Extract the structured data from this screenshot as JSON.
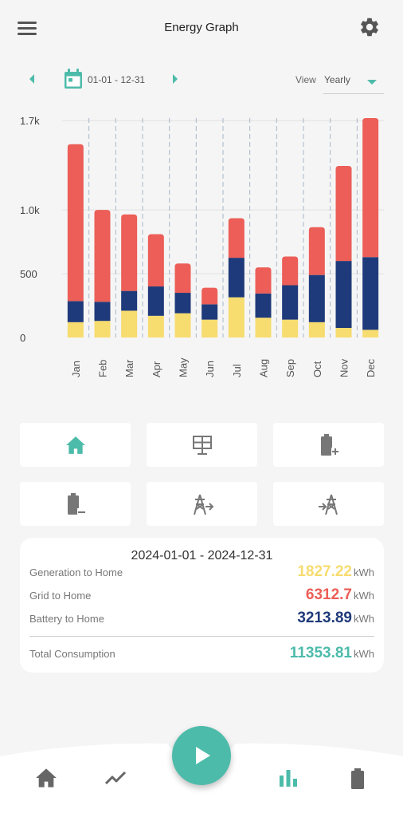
{
  "header": {
    "title": "Energy Graph",
    "menu_icon": "hamburger-menu-icon",
    "settings_icon": "gear-icon"
  },
  "date_bar": {
    "date_range": "01-01 - 12-31",
    "view_label": "View",
    "view_value": "Yearly",
    "prev_icon": "chevron-left-icon",
    "next_icon": "chevron-right-icon",
    "calendar_icon": "calendar-icon"
  },
  "colors": {
    "accent": "#4dbbaa",
    "generation": "#f7dc6f",
    "grid": "#ec5e57",
    "battery": "#1f3a7a"
  },
  "chart_data": {
    "type": "bar",
    "stacked": true,
    "categories": [
      "Jan",
      "Feb",
      "Mar",
      "Apr",
      "May",
      "Jun",
      "Jul",
      "Aug",
      "Sep",
      "Oct",
      "Nov",
      "Dec"
    ],
    "series": [
      {
        "color": "#f7dc6f",
        "values": [
          120,
          130,
          210,
          170,
          190,
          140,
          315,
          155,
          140,
          120,
          75,
          60
        ]
      },
      {
        "color": "#1f3a7a",
        "values": [
          165,
          150,
          155,
          230,
          160,
          120,
          310,
          190,
          270,
          370,
          525,
          570
        ]
      },
      {
        "color": "#ec5e57",
        "values": [
          1230,
          720,
          600,
          410,
          230,
          130,
          310,
          205,
          225,
          375,
          745,
          1090
        ]
      }
    ],
    "yticks": [
      "0",
      "500",
      "1.0k",
      "1.7k"
    ],
    "ytick_values": [
      0,
      500,
      1000,
      1700
    ],
    "ylim": [
      0,
      1720
    ],
    "grid": true,
    "legend": "none"
  },
  "mode_buttons": [
    {
      "icon": "home-icon",
      "active": true
    },
    {
      "icon": "solar-panel-icon",
      "active": false
    },
    {
      "icon": "battery-charge-icon",
      "active": false
    },
    {
      "icon": "battery-discharge-icon",
      "active": false
    },
    {
      "icon": "grid-export-icon",
      "active": false
    },
    {
      "icon": "grid-import-icon",
      "active": false
    }
  ],
  "summary": {
    "date_range": "2024-01-01 - 2024-12-31",
    "rows": [
      {
        "label": "Generation to Home",
        "value": "1827.22",
        "unit": "kWh",
        "color": "#f7dc6f"
      },
      {
        "label": "Grid to Home",
        "value": "6312.7",
        "unit": "kWh",
        "color": "#ec5e57"
      },
      {
        "label": "Battery to Home",
        "value": "3213.89",
        "unit": "kWh",
        "color": "#1f3a7a"
      }
    ],
    "total": {
      "label": "Total Consumption",
      "value": "11353.81",
      "unit": "kWh",
      "color": "#4dbbaa"
    }
  },
  "bottom_nav": {
    "items": [
      {
        "icon": "home-icon"
      },
      {
        "icon": "trend-line-icon"
      },
      {
        "icon": "play-icon"
      },
      {
        "icon": "bar-chart-icon"
      },
      {
        "icon": "battery-icon"
      }
    ]
  }
}
